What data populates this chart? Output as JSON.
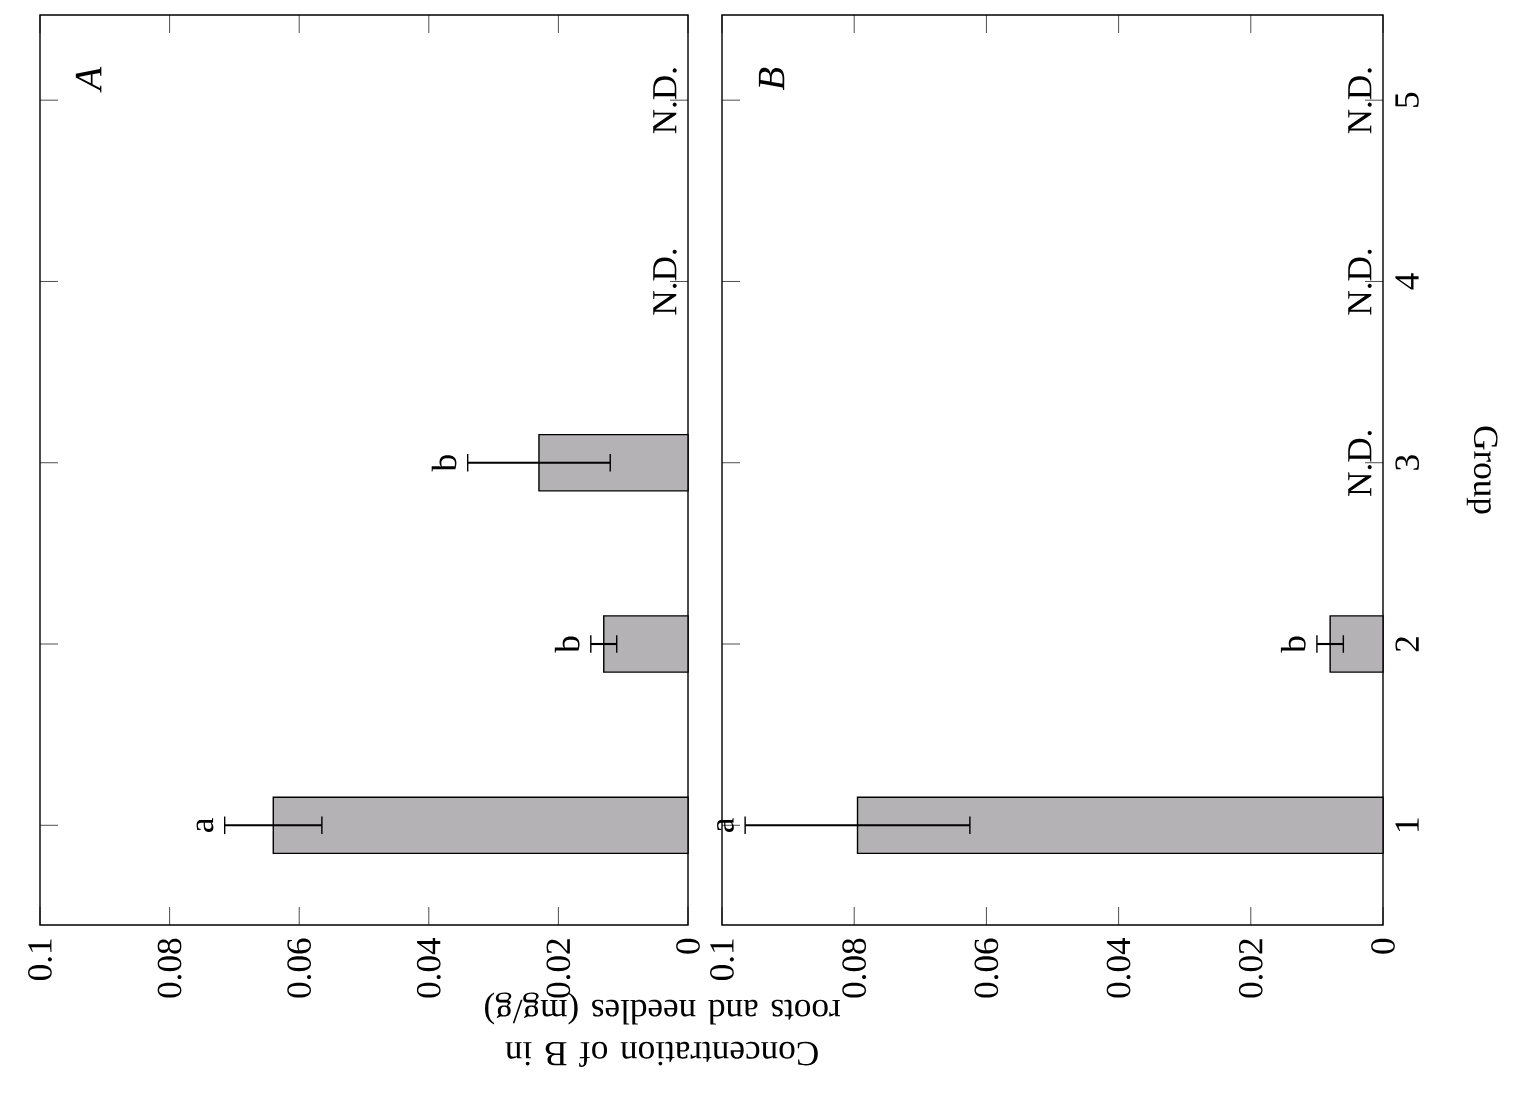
{
  "chart_data": [
    {
      "type": "bar",
      "orientation": "horizontal",
      "title": "A",
      "categories": [
        "5",
        "4",
        "3",
        "2",
        "1"
      ],
      "values": [
        null,
        null,
        0.023,
        0.013,
        0.064
      ],
      "errors": [
        null,
        null,
        0.011,
        0.002,
        0.0075
      ],
      "color": "#b4b2b4",
      "xlim": [
        0.1,
        0
      ],
      "xticks": [
        0.1,
        0.08,
        0.06,
        0.04,
        0.02,
        0
      ],
      "tick_labels": "x",
      "xlabel": "Concentration of B in roots and needles (mg/g)",
      "value_labels": [
        "N.D.",
        "N.D.",
        null,
        null,
        null
      ],
      "annotations": [
        {
          "text": "b",
          "x": 0.034,
          "y": "3"
        },
        {
          "text": "b",
          "x": 0.015,
          "y": "2"
        },
        {
          "text": "a",
          "x": 0.0715,
          "y": "1"
        }
      ]
    },
    {
      "type": "bar",
      "orientation": "horizontal",
      "title": "B",
      "categories": [
        "5",
        "4",
        "3",
        "2",
        "1"
      ],
      "values": [
        null,
        null,
        null,
        0.008,
        0.0795
      ],
      "errors": [
        null,
        null,
        null,
        0.002,
        0.017
      ],
      "color": "#b4b2b4",
      "xlim": [
        0.1,
        0
      ],
      "xticks": [
        0.1,
        0.08,
        0.06,
        0.04,
        0.02,
        0
      ],
      "ylabel": "Group",
      "value_labels": [
        "N.D.",
        "N.D.",
        "N.D.",
        null,
        null
      ],
      "annotations": [
        {
          "text": "b",
          "x": 0.01,
          "y": "2"
        },
        {
          "text": "a",
          "x": 0.0965,
          "y": "1"
        }
      ]
    }
  ]
}
